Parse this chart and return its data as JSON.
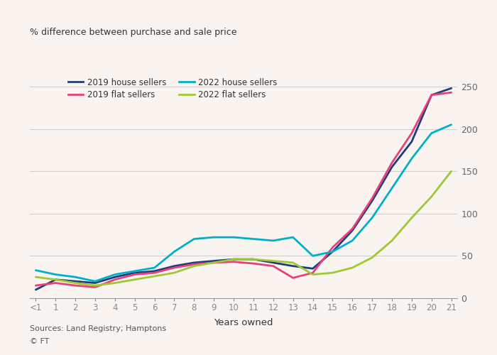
{
  "x_labels": [
    "<1",
    "1",
    "2",
    "3",
    "4",
    "5",
    "6",
    "7",
    "8",
    "9",
    "10",
    "11",
    "12",
    "13",
    "14",
    "15",
    "16",
    "17",
    "18",
    "19",
    "20",
    "21"
  ],
  "x_numeric": [
    0,
    1,
    2,
    3,
    4,
    5,
    6,
    7,
    8,
    9,
    10,
    11,
    12,
    13,
    14,
    15,
    16,
    17,
    18,
    19,
    20,
    21
  ],
  "series": {
    "2019 house sellers": [
      10,
      22,
      20,
      18,
      25,
      30,
      32,
      38,
      42,
      44,
      46,
      46,
      42,
      38,
      35,
      55,
      80,
      115,
      155,
      185,
      240,
      248
    ],
    "2019 flat sellers": [
      15,
      18,
      15,
      13,
      22,
      28,
      30,
      36,
      40,
      42,
      43,
      41,
      38,
      24,
      30,
      60,
      82,
      118,
      160,
      195,
      240,
      243
    ],
    "2022 house sellers": [
      33,
      28,
      25,
      20,
      28,
      32,
      36,
      55,
      70,
      72,
      72,
      70,
      68,
      72,
      50,
      55,
      68,
      95,
      130,
      165,
      195,
      205
    ],
    "2022 flat sellers": [
      25,
      22,
      18,
      15,
      18,
      22,
      26,
      30,
      38,
      42,
      46,
      46,
      44,
      42,
      28,
      30,
      36,
      48,
      68,
      95,
      120,
      150
    ]
  },
  "colors": {
    "2019 house sellers": "#1f3d7a",
    "2019 flat sellers": "#e8417a",
    "2022 house sellers": "#00b0c8",
    "2022 flat sellers": "#a0c832"
  },
  "ylabel": "% difference between purchase and sale price",
  "xlabel": "Years owned",
  "ylim": [
    0,
    260
  ],
  "yticks": [
    0,
    50,
    100,
    150,
    200,
    250
  ],
  "source": "Sources: Land Registry; Hamptons",
  "source2": "© FT",
  "background_color": "#f9f4ef",
  "line_width": 2.0,
  "fig_width": 7.0,
  "fig_height": 5.0,
  "dpi": 100
}
